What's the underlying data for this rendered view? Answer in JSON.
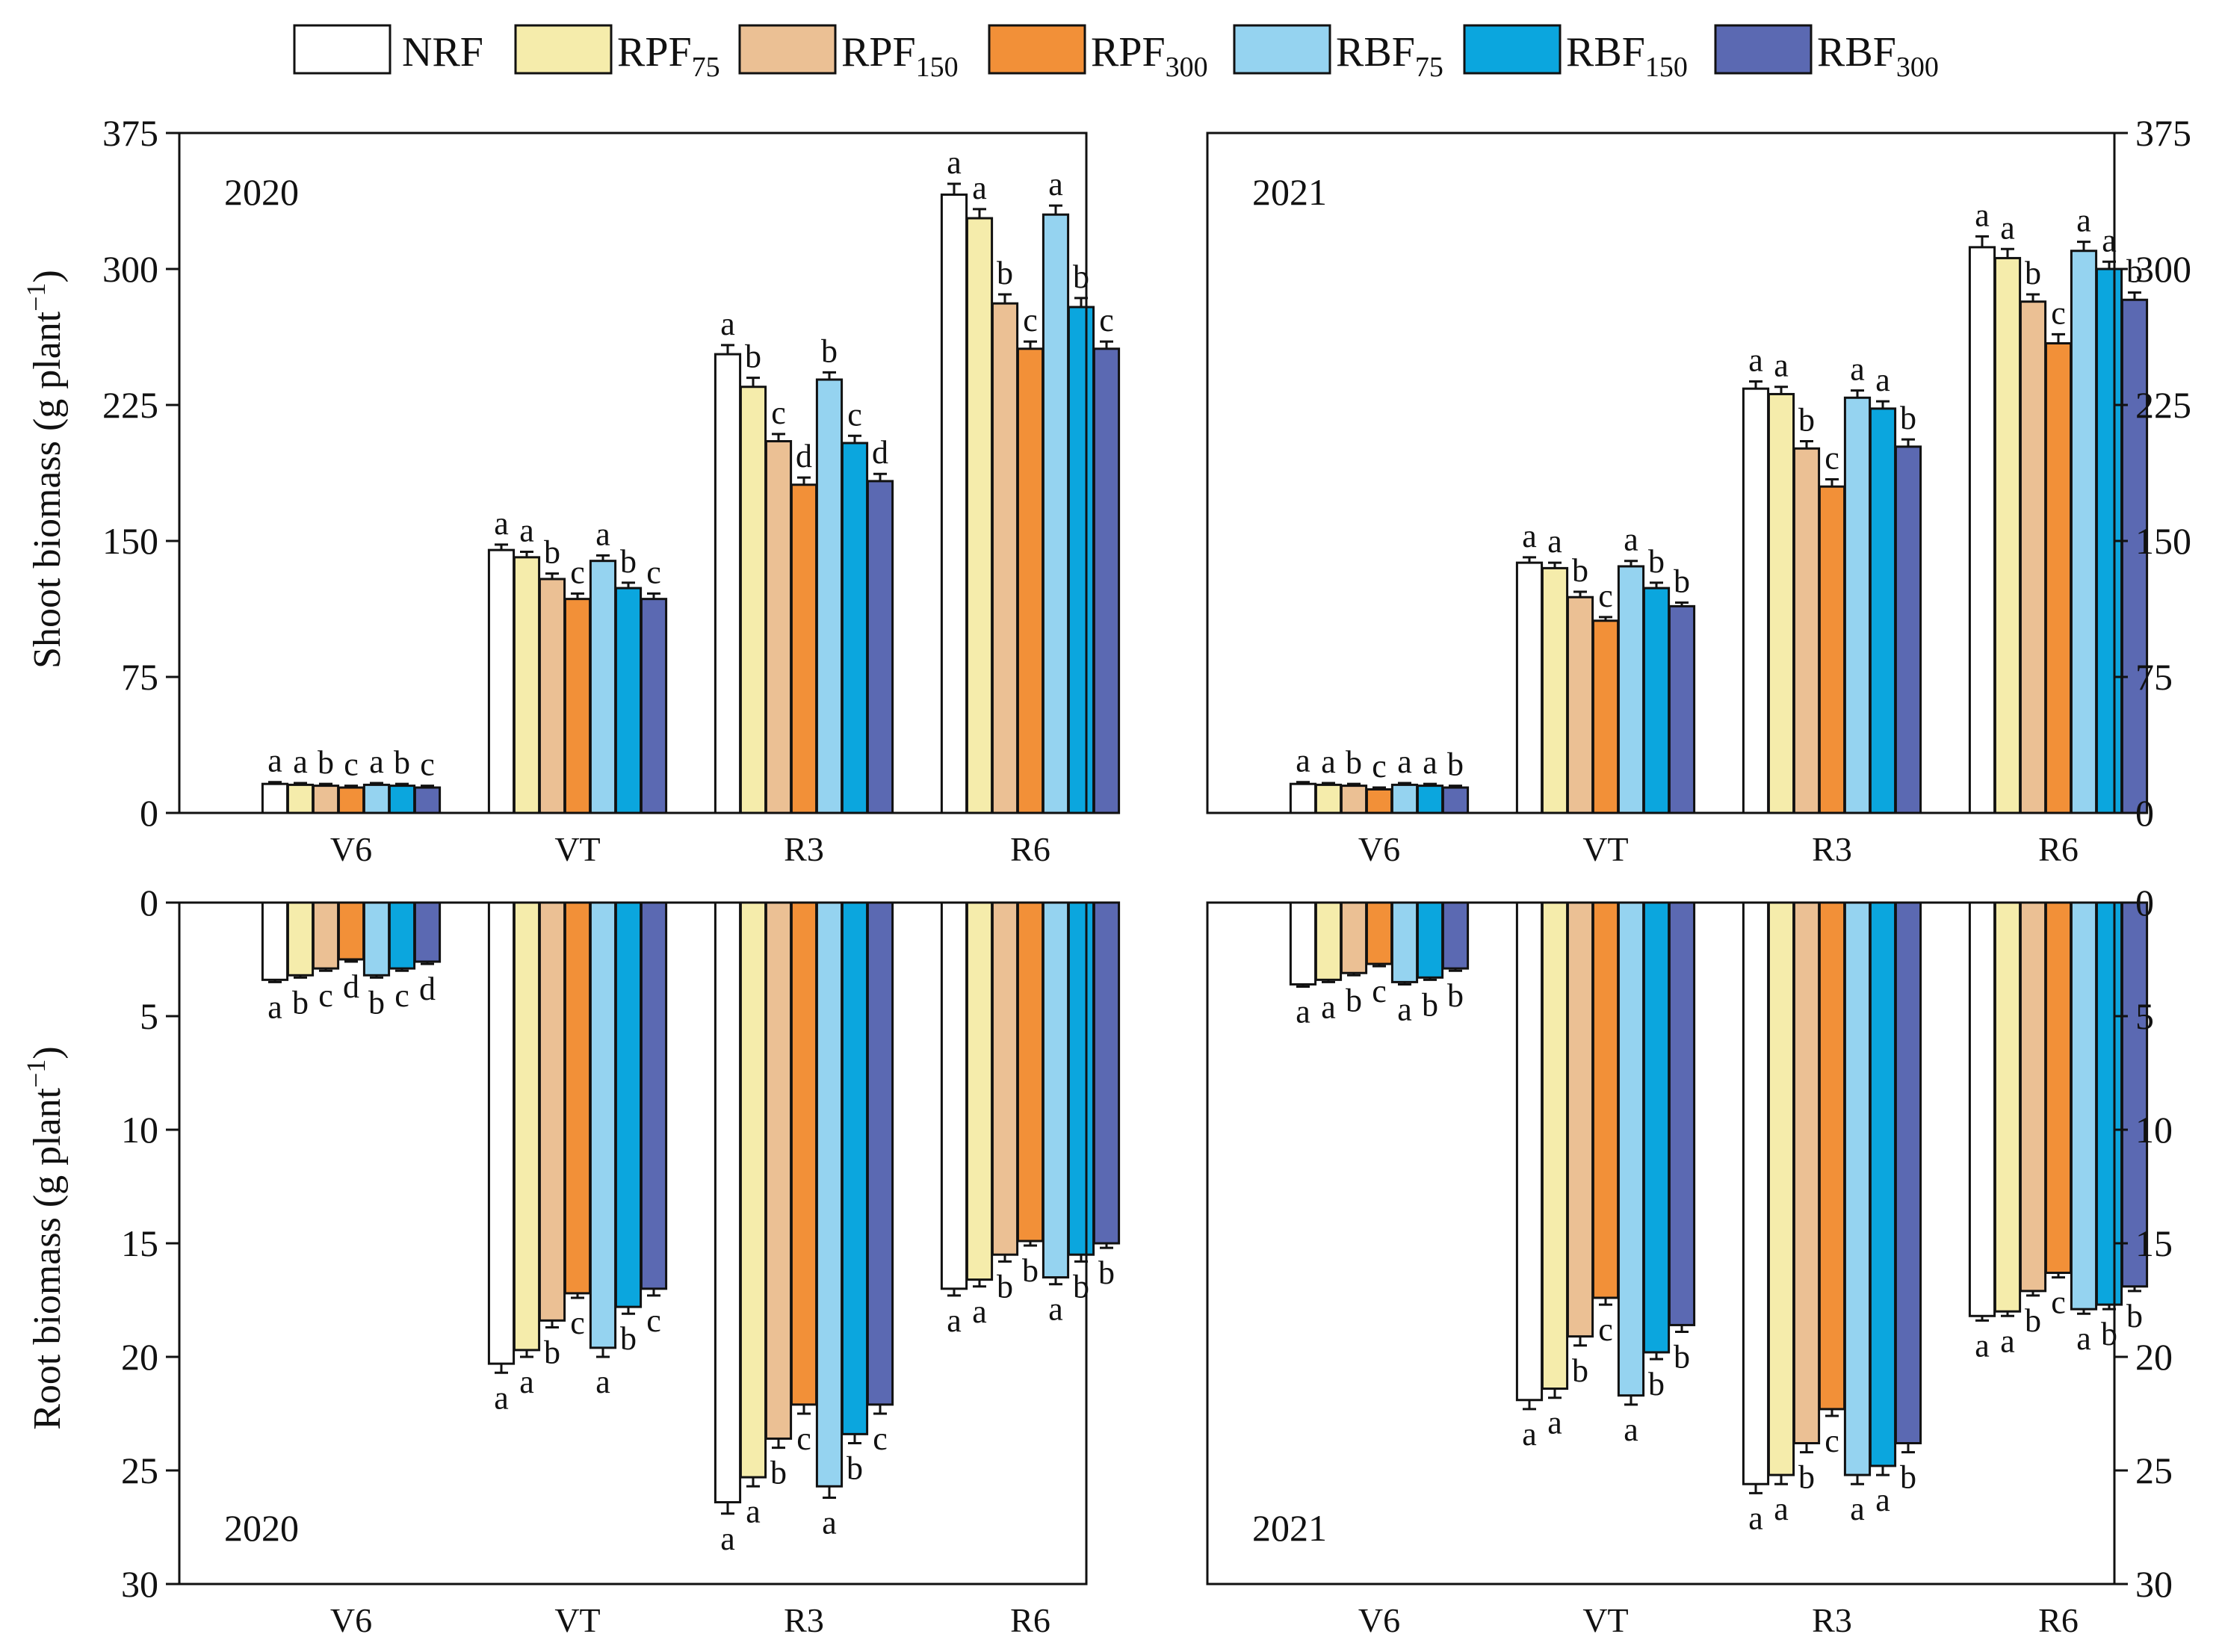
{
  "legend": [
    {
      "base": "NRF",
      "sub": "",
      "color": "#ffffff"
    },
    {
      "base": "RPF",
      "sub": "75",
      "color": "#f5ecab"
    },
    {
      "base": "RPF",
      "sub": "150",
      "color": "#ebc094"
    },
    {
      "base": "RPF",
      "sub": "300",
      "color": "#f29038"
    },
    {
      "base": "RBF",
      "sub": "75",
      "color": "#95d3f0"
    },
    {
      "base": "RBF",
      "sub": "150",
      "color": "#0ba6de"
    },
    {
      "base": "RBF",
      "sub": "300",
      "color": "#5b69b2"
    }
  ],
  "axis_labels": {
    "shoot": {
      "main": "Shoot biomass (g plant",
      "sup": "−1",
      "end": ")"
    },
    "root": {
      "main": "Root biomass (g plant",
      "sup": "−1",
      "end": ")"
    }
  },
  "chart_data": [
    {
      "type": "bar",
      "id": "shoot-2020",
      "title": "2020",
      "year": "2020",
      "categories": [
        "V6",
        "VT",
        "R3",
        "R6"
      ],
      "ylim": [
        0,
        375
      ],
      "yticks": [
        0,
        75,
        150,
        225,
        300,
        375
      ],
      "y_axis_side": "left",
      "direction": "up",
      "series": [
        {
          "name": "NRF",
          "values": [
            16,
            145,
            253,
            341
          ],
          "errors": [
            1,
            3,
            5,
            6
          ],
          "letters": [
            "a",
            "a",
            "a",
            "a"
          ]
        },
        {
          "name": "RPF75",
          "values": [
            15.5,
            141,
            235,
            328
          ],
          "errors": [
            1,
            3,
            5,
            5
          ],
          "letters": [
            "a",
            "a",
            "b",
            "a"
          ]
        },
        {
          "name": "RPF150",
          "values": [
            15,
            129,
            205,
            281
          ],
          "errors": [
            1,
            3,
            4,
            5
          ],
          "letters": [
            "b",
            "b",
            "c",
            "b"
          ]
        },
        {
          "name": "RPF300",
          "values": [
            14,
            118,
            181,
            256
          ],
          "errors": [
            1,
            3,
            4,
            4
          ],
          "letters": [
            "c",
            "c",
            "d",
            "c"
          ]
        },
        {
          "name": "RBF75",
          "values": [
            15.5,
            139,
            239,
            330
          ],
          "errors": [
            1,
            3,
            4,
            5
          ],
          "letters": [
            "a",
            "a",
            "b",
            "a"
          ]
        },
        {
          "name": "RBF150",
          "values": [
            15,
            124,
            204,
            279
          ],
          "errors": [
            1,
            3,
            4,
            5
          ],
          "letters": [
            "b",
            "b",
            "c",
            "b"
          ]
        },
        {
          "name": "RBF300",
          "values": [
            14,
            118,
            183,
            256
          ],
          "errors": [
            1,
            3,
            4,
            4
          ],
          "letters": [
            "c",
            "c",
            "d",
            "c"
          ]
        }
      ]
    },
    {
      "type": "bar",
      "id": "shoot-2021",
      "title": "2021",
      "year": "2021",
      "categories": [
        "V6",
        "VT",
        "R3",
        "R6"
      ],
      "ylim": [
        0,
        375
      ],
      "yticks": [
        0,
        75,
        150,
        225,
        300,
        375
      ],
      "y_axis_side": "right",
      "direction": "up",
      "series": [
        {
          "name": "NRF",
          "values": [
            16,
            138,
            234,
            312
          ],
          "errors": [
            1,
            3,
            4,
            6
          ],
          "letters": [
            "a",
            "a",
            "a",
            "a"
          ]
        },
        {
          "name": "RPF75",
          "values": [
            15.5,
            135,
            231,
            306
          ],
          "errors": [
            1,
            3,
            4,
            5
          ],
          "letters": [
            "a",
            "a",
            "a",
            "a"
          ]
        },
        {
          "name": "RPF150",
          "values": [
            15,
            119,
            201,
            282
          ],
          "errors": [
            1,
            3,
            4,
            4
          ],
          "letters": [
            "b",
            "b",
            "b",
            "b"
          ]
        },
        {
          "name": "RPF300",
          "values": [
            13,
            106,
            180,
            259
          ],
          "errors": [
            1,
            2,
            4,
            5
          ],
          "letters": [
            "c",
            "c",
            "c",
            "c"
          ]
        },
        {
          "name": "RBF75",
          "values": [
            15.5,
            136,
            229,
            310
          ],
          "errors": [
            1,
            3,
            4,
            5
          ],
          "letters": [
            "a",
            "a",
            "a",
            "a"
          ]
        },
        {
          "name": "RBF150",
          "values": [
            15,
            124,
            223,
            300
          ],
          "errors": [
            1,
            3,
            4,
            4
          ],
          "letters": [
            "a",
            "b",
            "a",
            "a"
          ]
        },
        {
          "name": "RBF300",
          "values": [
            14,
            114,
            202,
            283
          ],
          "errors": [
            1,
            2,
            4,
            4
          ],
          "letters": [
            "b",
            "b",
            "b",
            "b"
          ]
        }
      ]
    },
    {
      "type": "bar",
      "id": "root-2020",
      "title": "2020",
      "year": "2020",
      "categories": [
        "V6",
        "VT",
        "R3",
        "R6"
      ],
      "ylim": [
        0,
        30
      ],
      "yticks": [
        0,
        5,
        10,
        15,
        20,
        25,
        30
      ],
      "y_axis_side": "left",
      "direction": "down",
      "series": [
        {
          "name": "NRF",
          "values": [
            3.4,
            20.3,
            26.4,
            17.0
          ],
          "errors": [
            0.1,
            0.4,
            0.5,
            0.3
          ],
          "letters": [
            "a",
            "a",
            "a",
            "a"
          ]
        },
        {
          "name": "RPF75",
          "values": [
            3.2,
            19.7,
            25.3,
            16.6
          ],
          "errors": [
            0.1,
            0.3,
            0.4,
            0.3
          ],
          "letters": [
            "b",
            "a",
            "a",
            "a"
          ]
        },
        {
          "name": "RPF150",
          "values": [
            2.9,
            18.4,
            23.6,
            15.5
          ],
          "errors": [
            0.1,
            0.3,
            0.4,
            0.3
          ],
          "letters": [
            "c",
            "b",
            "b",
            "b"
          ]
        },
        {
          "name": "RPF300",
          "values": [
            2.5,
            17.2,
            22.1,
            14.9
          ],
          "errors": [
            0.1,
            0.2,
            0.4,
            0.2
          ],
          "letters": [
            "d",
            "c",
            "c",
            "b"
          ]
        },
        {
          "name": "RBF75",
          "values": [
            3.2,
            19.6,
            25.7,
            16.5
          ],
          "errors": [
            0.1,
            0.4,
            0.5,
            0.3
          ],
          "letters": [
            "b",
            "a",
            "a",
            "a"
          ]
        },
        {
          "name": "RBF150",
          "values": [
            2.9,
            17.8,
            23.4,
            15.5
          ],
          "errors": [
            0.1,
            0.3,
            0.4,
            0.3
          ],
          "letters": [
            "c",
            "b",
            "b",
            "b"
          ]
        },
        {
          "name": "RBF300",
          "values": [
            2.6,
            17.0,
            22.1,
            15.0
          ],
          "errors": [
            0.1,
            0.3,
            0.4,
            0.2
          ],
          "letters": [
            "d",
            "c",
            "c",
            "b"
          ]
        }
      ]
    },
    {
      "type": "bar",
      "id": "root-2021",
      "title": "2021",
      "year": "2021",
      "categories": [
        "V6",
        "VT",
        "R3",
        "R6"
      ],
      "ylim": [
        0,
        30
      ],
      "yticks": [
        0,
        5,
        10,
        15,
        20,
        25,
        30
      ],
      "y_axis_side": "right",
      "direction": "down",
      "series": [
        {
          "name": "NRF",
          "values": [
            3.6,
            21.9,
            25.6,
            18.2
          ],
          "errors": [
            0.1,
            0.4,
            0.4,
            0.2
          ],
          "letters": [
            "a",
            "a",
            "a",
            "a"
          ]
        },
        {
          "name": "RPF75",
          "values": [
            3.4,
            21.4,
            25.2,
            18.0
          ],
          "errors": [
            0.1,
            0.4,
            0.4,
            0.2
          ],
          "letters": [
            "a",
            "a",
            "a",
            "a"
          ]
        },
        {
          "name": "RPF150",
          "values": [
            3.1,
            19.1,
            23.8,
            17.1
          ],
          "errors": [
            0.1,
            0.4,
            0.4,
            0.2
          ],
          "letters": [
            "b",
            "b",
            "b",
            "b"
          ]
        },
        {
          "name": "RPF300",
          "values": [
            2.7,
            17.4,
            22.3,
            16.3
          ],
          "errors": [
            0.1,
            0.3,
            0.3,
            0.2
          ],
          "letters": [
            "c",
            "c",
            "c",
            "c"
          ]
        },
        {
          "name": "RBF75",
          "values": [
            3.5,
            21.7,
            25.2,
            17.9
          ],
          "errors": [
            0.1,
            0.4,
            0.4,
            0.2
          ],
          "letters": [
            "a",
            "a",
            "a",
            "a"
          ]
        },
        {
          "name": "RBF150",
          "values": [
            3.3,
            19.8,
            24.8,
            17.7
          ],
          "errors": [
            0.1,
            0.3,
            0.4,
            0.2
          ],
          "letters": [
            "b",
            "b",
            "a",
            "b"
          ]
        },
        {
          "name": "RBF300",
          "values": [
            2.9,
            18.6,
            23.8,
            16.9
          ],
          "errors": [
            0.1,
            0.3,
            0.4,
            0.2
          ],
          "letters": [
            "b",
            "b",
            "b",
            "b"
          ]
        }
      ]
    }
  ]
}
